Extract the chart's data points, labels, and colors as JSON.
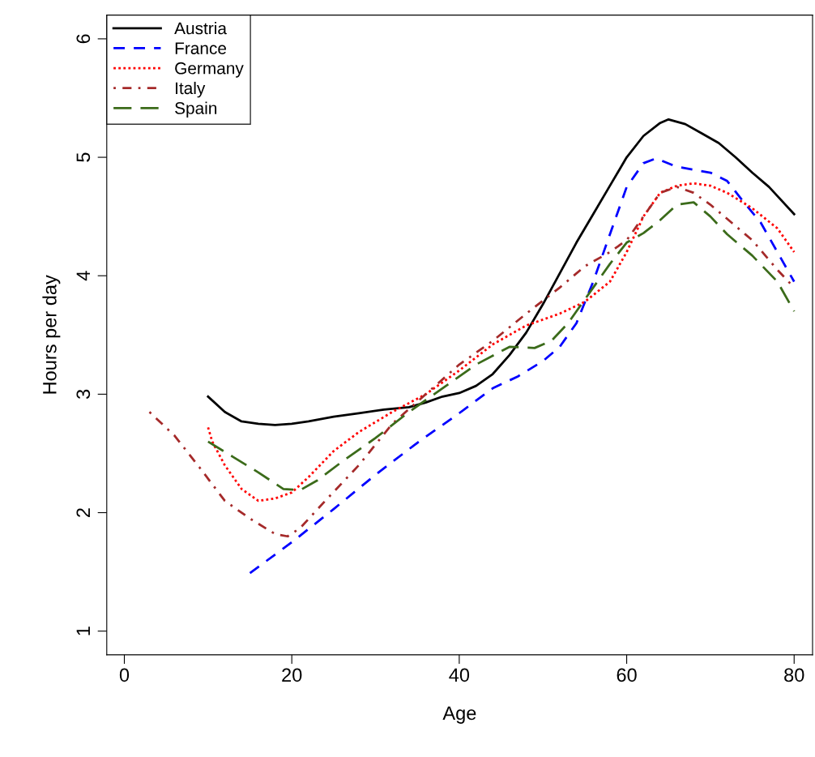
{
  "chart_data": {
    "type": "line",
    "xlabel": "Age",
    "ylabel": "Hours per day",
    "xlim": [
      -2.1,
      82.2
    ],
    "ylim": [
      0.8,
      6.2
    ],
    "xticks": [
      0,
      20,
      40,
      60,
      80
    ],
    "yticks": [
      1,
      2,
      3,
      4,
      5,
      6
    ],
    "grid": false,
    "legend": "top left",
    "marker": "none",
    "series": [
      {
        "name": "Austria",
        "color": "#000000",
        "line_style": "solid",
        "x": [
          10,
          12,
          14,
          16,
          18,
          20,
          22,
          25,
          28,
          31,
          34,
          36,
          38,
          40,
          42,
          44,
          46,
          48,
          50,
          52,
          54,
          56,
          58,
          60,
          62,
          64,
          65,
          67,
          69,
          71,
          73,
          75,
          77,
          80
        ],
        "values": [
          2.98,
          2.85,
          2.77,
          2.75,
          2.74,
          2.75,
          2.77,
          2.81,
          2.84,
          2.87,
          2.89,
          2.93,
          2.98,
          3.01,
          3.07,
          3.17,
          3.33,
          3.52,
          3.76,
          4.02,
          4.28,
          4.52,
          4.76,
          5.0,
          5.18,
          5.29,
          5.32,
          5.28,
          5.2,
          5.12,
          5.0,
          4.87,
          4.75,
          4.52
        ]
      },
      {
        "name": "France",
        "color": "#0000ff",
        "line_style": "dashed",
        "x": [
          15,
          20,
          25,
          30,
          35,
          40,
          44,
          47,
          50,
          52,
          54,
          56,
          58,
          60,
          62,
          63.5,
          66,
          70,
          72,
          74,
          76,
          78,
          80
        ],
        "values": [
          1.49,
          1.75,
          2.03,
          2.32,
          2.59,
          2.84,
          3.05,
          3.15,
          3.28,
          3.4,
          3.6,
          3.95,
          4.35,
          4.75,
          4.95,
          4.99,
          4.92,
          4.87,
          4.8,
          4.62,
          4.45,
          4.2,
          3.95
        ]
      },
      {
        "name": "Germany",
        "color": "#ff0000",
        "line_style": "dotted",
        "x": [
          10,
          10.5,
          12,
          14,
          16,
          18,
          20,
          22,
          25,
          28,
          32,
          36,
          40,
          44,
          48,
          52,
          55,
          58,
          60,
          62,
          64,
          66,
          68,
          70,
          72,
          75,
          78,
          80
        ],
        "values": [
          2.72,
          2.6,
          2.4,
          2.2,
          2.1,
          2.12,
          2.17,
          2.3,
          2.52,
          2.68,
          2.85,
          3.0,
          3.2,
          3.42,
          3.58,
          3.68,
          3.78,
          3.95,
          4.2,
          4.5,
          4.7,
          4.76,
          4.78,
          4.76,
          4.7,
          4.57,
          4.4,
          4.2
        ]
      },
      {
        "name": "Italy",
        "color": "#a52a2a",
        "line_style": "dashdot",
        "x": [
          3,
          6,
          9,
          12,
          15,
          18,
          19.5,
          21,
          24,
          28,
          32,
          36,
          40,
          44,
          48,
          52,
          55,
          58,
          60,
          62,
          64,
          66,
          68,
          70,
          72,
          75,
          78,
          80
        ],
        "values": [
          2.85,
          2.65,
          2.38,
          2.1,
          1.95,
          1.82,
          1.8,
          1.87,
          2.1,
          2.4,
          2.75,
          3.0,
          3.25,
          3.45,
          3.68,
          3.9,
          4.08,
          4.2,
          4.3,
          4.5,
          4.7,
          4.75,
          4.7,
          4.6,
          4.48,
          4.3,
          4.05,
          3.9
        ]
      },
      {
        "name": "Spain",
        "color": "#3b6b1a",
        "line_style": "longdash",
        "x": [
          10,
          13,
          16,
          19,
          21,
          23,
          26,
          30,
          34,
          38,
          42,
          46,
          49,
          51,
          53,
          56,
          58,
          60,
          62,
          64,
          66,
          68,
          70,
          72,
          75,
          78,
          80
        ],
        "values": [
          2.6,
          2.47,
          2.34,
          2.2,
          2.19,
          2.27,
          2.43,
          2.63,
          2.85,
          3.05,
          3.25,
          3.4,
          3.39,
          3.45,
          3.6,
          3.9,
          4.1,
          4.28,
          4.36,
          4.47,
          4.6,
          4.62,
          4.5,
          4.35,
          4.17,
          3.95,
          3.7
        ]
      }
    ]
  }
}
